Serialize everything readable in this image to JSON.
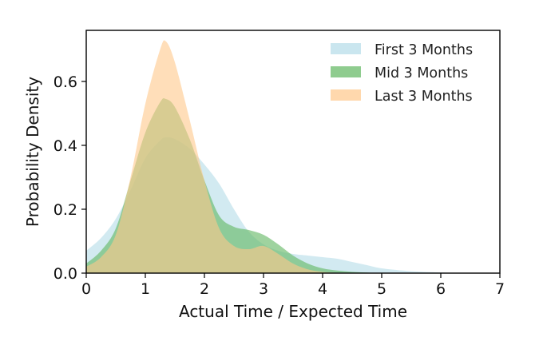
{
  "chart_data": {
    "type": "area",
    "title": "",
    "xlabel": "Actual Time / Expected Time",
    "ylabel": "Probability Density",
    "xlim": [
      0,
      7
    ],
    "ylim": [
      0,
      0.76
    ],
    "xticks": [
      0,
      1,
      2,
      3,
      4,
      5,
      6,
      7
    ],
    "xtick_labels": [
      "0",
      "1",
      "2",
      "3",
      "4",
      "5",
      "6",
      "7"
    ],
    "yticks": [
      0.0,
      0.2,
      0.4,
      0.6
    ],
    "ytick_labels": [
      "0.0",
      "0.2",
      "0.4",
      "0.6"
    ],
    "grid": false,
    "legend_position": "top-right",
    "x": [
      0,
      0.25,
      0.5,
      0.75,
      1.0,
      1.25,
      1.35,
      1.5,
      1.75,
      2.0,
      2.25,
      2.5,
      2.75,
      3.0,
      3.25,
      3.5,
      3.75,
      4.0,
      4.25,
      4.5,
      4.75,
      5.0,
      5.5,
      6.0,
      6.5,
      7.0
    ],
    "series": [
      {
        "name": "First 3 Months",
        "color": "#add8e6",
        "opacity": 0.55,
        "values": [
          0.07,
          0.11,
          0.17,
          0.26,
          0.36,
          0.415,
          0.425,
          0.42,
          0.39,
          0.34,
          0.28,
          0.2,
          0.13,
          0.09,
          0.07,
          0.06,
          0.055,
          0.05,
          0.045,
          0.035,
          0.025,
          0.015,
          0.006,
          0.002,
          0.0,
          0.0
        ]
      },
      {
        "name": "Mid 3 Months",
        "color": "#5fb65f",
        "opacity": 0.6,
        "values": [
          0.03,
          0.07,
          0.14,
          0.29,
          0.44,
          0.535,
          0.545,
          0.52,
          0.42,
          0.29,
          0.18,
          0.145,
          0.135,
          0.12,
          0.09,
          0.055,
          0.03,
          0.015,
          0.008,
          0.004,
          0.002,
          0.0,
          0.0,
          0.0,
          0.0,
          0.0
        ]
      },
      {
        "name": "Last 3 Months",
        "color": "#ffc88a",
        "opacity": 0.6,
        "values": [
          0.02,
          0.05,
          0.12,
          0.3,
          0.53,
          0.7,
          0.725,
          0.66,
          0.48,
          0.29,
          0.14,
          0.085,
          0.075,
          0.085,
          0.06,
          0.03,
          0.012,
          0.004,
          0.001,
          0.0,
          0.0,
          0.0,
          0.0,
          0.0,
          0.0,
          0.0
        ]
      }
    ]
  }
}
